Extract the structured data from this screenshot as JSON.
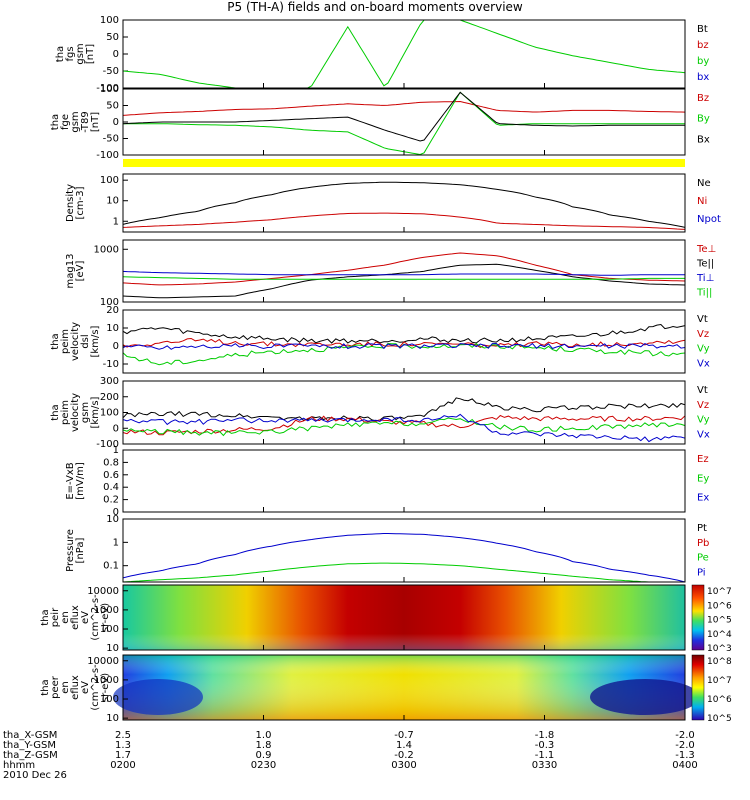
{
  "title": "P5 (TH-A) fields and on-board moments overview",
  "date_label": "2010 Dec 26",
  "colors": {
    "black": "#000000",
    "red": "#cc0000",
    "green": "#00cc00",
    "blue": "#0000cc",
    "yellow": "#ffff00"
  },
  "chart_data": [
    {
      "type": "line",
      "title": "",
      "ylabel": [
        "tha",
        "fgs",
        "gsm",
        "[nT]"
      ],
      "ylim": [
        -100,
        100
      ],
      "yticks": [
        100,
        50,
        0,
        -50,
        -100
      ],
      "series": [
        {
          "name": "Bt",
          "color": "black",
          "values": []
        },
        {
          "name": "bz",
          "color": "red",
          "values": []
        },
        {
          "name": "by",
          "color": "green",
          "values": [
            -50,
            -60,
            -85,
            -100,
            -100,
            -100,
            80,
            -100,
            100,
            100,
            60,
            20,
            -5,
            -25,
            -45,
            -55
          ]
        },
        {
          "name": "bx",
          "color": "blue",
          "values": []
        }
      ]
    },
    {
      "type": "line",
      "ylabel": [
        "tha",
        "fge",
        "gsm",
        "-T89",
        "[nT]"
      ],
      "ylim": [
        -100,
        100
      ],
      "yticks": [
        100,
        50,
        0,
        -50,
        -100
      ],
      "series": [
        {
          "name": "Bz",
          "color": "red",
          "values": [
            20,
            28,
            32,
            38,
            40,
            48,
            55,
            50,
            60,
            62,
            35,
            30,
            35,
            35,
            32,
            30
          ]
        },
        {
          "name": "By",
          "color": "green",
          "values": [
            -5,
            -5,
            -8,
            -10,
            -15,
            -25,
            -30,
            -80,
            -100,
            90,
            -10,
            -5,
            -5,
            -5,
            -5,
            -5
          ]
        },
        {
          "name": "Bx",
          "color": "black",
          "values": [
            -5,
            0,
            0,
            0,
            5,
            10,
            15,
            -25,
            -60,
            90,
            -5,
            -10,
            -12,
            -10,
            -10,
            -10
          ]
        }
      ],
      "band_below": "yellow"
    },
    {
      "type": "line",
      "log": true,
      "ylabel": [
        "Density",
        "[cm-3]"
      ],
      "ylim": [
        0.3,
        200
      ],
      "yticks": [
        100,
        10,
        1
      ],
      "series": [
        {
          "name": "Ne",
          "color": "black",
          "values": [
            0.7,
            1.5,
            3,
            8,
            20,
            45,
            70,
            80,
            75,
            60,
            35,
            15,
            5,
            2,
            1,
            0.5
          ]
        },
        {
          "name": "Ni",
          "color": "red",
          "values": [
            0.5,
            0.6,
            0.7,
            0.9,
            1.2,
            1.8,
            2.4,
            2.5,
            2.3,
            1.6,
            0.8,
            0.7,
            0.6,
            0.55,
            0.5,
            0.4
          ]
        },
        {
          "name": "Npot",
          "color": "blue",
          "values": []
        }
      ]
    },
    {
      "type": "line",
      "log": true,
      "ylabel": [
        "mag13",
        "[eV]"
      ],
      "ylim": [
        100,
        1500
      ],
      "yticks": [
        1000,
        100
      ],
      "series": [
        {
          "name": "Te⊥",
          "color": "red",
          "values": [
            230,
            210,
            220,
            240,
            280,
            330,
            400,
            500,
            700,
            850,
            750,
            500,
            330,
            280,
            260,
            250
          ]
        },
        {
          "name": "Te||",
          "color": "black",
          "values": [
            130,
            120,
            125,
            130,
            180,
            260,
            300,
            330,
            380,
            500,
            520,
            400,
            300,
            250,
            220,
            210
          ]
        },
        {
          "name": "Ti⊥",
          "color": "blue",
          "values": [
            380,
            360,
            350,
            340,
            330,
            330,
            330,
            330,
            330,
            340,
            340,
            340,
            330,
            320,
            330,
            330
          ]
        },
        {
          "name": "Ti||",
          "color": "green",
          "values": [
            300,
            290,
            280,
            270,
            270,
            270,
            270,
            270,
            270,
            270,
            270,
            270,
            270,
            270,
            280,
            280
          ]
        }
      ]
    },
    {
      "type": "line",
      "ylabel": [
        "tha",
        "peim",
        "velocity",
        "dsl",
        "[km/s]"
      ],
      "ylim": [
        -15,
        20
      ],
      "yticks": [
        20,
        10,
        0,
        -10
      ],
      "series": [
        {
          "name": "Vt",
          "color": "black",
          "values": [
            8,
            10,
            7,
            5,
            4,
            3,
            3,
            3,
            4,
            3,
            3,
            4,
            5,
            7,
            10,
            12
          ]
        },
        {
          "name": "Vz",
          "color": "red",
          "values": [
            0,
            2,
            3,
            2,
            1,
            1,
            1,
            1,
            1,
            1,
            0,
            1,
            1,
            1,
            2,
            3
          ]
        },
        {
          "name": "Vy",
          "color": "green",
          "values": [
            -5,
            -10,
            -8,
            -5,
            -3,
            -2,
            -1,
            0,
            0,
            0,
            0,
            -1,
            -2,
            -3,
            -4,
            -5
          ]
        },
        {
          "name": "Vx",
          "color": "blue",
          "values": [
            0,
            -1,
            0,
            0,
            0,
            0,
            0,
            0,
            0,
            0,
            0,
            0,
            0,
            0,
            0,
            0
          ]
        }
      ]
    },
    {
      "type": "line",
      "ylabel": [
        "tha",
        "peim",
        "velocity",
        "gsm",
        "[km/s]"
      ],
      "ylim": [
        -100,
        300
      ],
      "yticks": [
        300,
        200,
        100,
        0,
        -100
      ],
      "series": [
        {
          "name": "Vt",
          "color": "black",
          "values": [
            80,
            90,
            90,
            80,
            70,
            60,
            70,
            60,
            70,
            200,
            130,
            120,
            130,
            140,
            140,
            150
          ]
        },
        {
          "name": "Vz",
          "color": "red",
          "values": [
            -20,
            -30,
            -20,
            -10,
            0,
            60,
            60,
            40,
            30,
            10,
            70,
            60,
            60,
            60,
            60,
            70
          ]
        },
        {
          "name": "Vy",
          "color": "green",
          "values": [
            -10,
            -20,
            -30,
            -30,
            -20,
            0,
            20,
            30,
            30,
            60,
            10,
            -10,
            0,
            10,
            20,
            30
          ]
        },
        {
          "name": "Vx",
          "color": "blue",
          "values": [
            50,
            40,
            40,
            50,
            50,
            50,
            50,
            60,
            50,
            80,
            -30,
            -40,
            -50,
            -60,
            -70,
            -60
          ]
        }
      ]
    },
    {
      "type": "line",
      "ylabel": [
        "E=-VxB",
        "[mV/m]"
      ],
      "ylim": [
        0,
        1
      ],
      "yticks": [
        1.0,
        0.8,
        0.6,
        0.4,
        0.2,
        0.0
      ],
      "series": [
        {
          "name": "Ez",
          "color": "red",
          "values": []
        },
        {
          "name": "Ey",
          "color": "green",
          "values": []
        },
        {
          "name": "Ex",
          "color": "blue",
          "values": []
        }
      ]
    },
    {
      "type": "line",
      "log": true,
      "ylabel": [
        "Pressure",
        "[nPa]"
      ],
      "ylim": [
        0.02,
        10
      ],
      "yticks": [
        10.0,
        1.0,
        0.1
      ],
      "series": [
        {
          "name": "Pt",
          "color": "black",
          "values": []
        },
        {
          "name": "Pb",
          "color": "red",
          "values": []
        },
        {
          "name": "Pe",
          "color": "green",
          "values": [
            0.02,
            0.025,
            0.03,
            0.04,
            0.06,
            0.09,
            0.12,
            0.13,
            0.12,
            0.1,
            0.07,
            0.05,
            0.035,
            0.025,
            0.02,
            0.02
          ]
        },
        {
          "name": "Pi",
          "color": "blue",
          "values": [
            0.03,
            0.06,
            0.12,
            0.3,
            0.7,
            1.3,
            2.0,
            2.4,
            2.2,
            1.6,
            0.9,
            0.4,
            0.15,
            0.07,
            0.04,
            0.02
          ]
        }
      ]
    },
    {
      "type": "heatmap",
      "ylabel": [
        "tha",
        "peir",
        "en",
        "eflux",
        "eV",
        "(cm^2-s-",
        "sr-eV)"
      ],
      "yticks": [
        10000,
        1000,
        100,
        10
      ],
      "colorbar_ticks": [
        "10^7",
        "10^6",
        "10^5",
        "10^4",
        "10^3"
      ],
      "colormap": "rainbow"
    },
    {
      "type": "heatmap",
      "ylabel": [
        "tha",
        "peer",
        "en",
        "eflux",
        "eV",
        "(cm^2-s-",
        "sr-eV)"
      ],
      "yticks": [
        10000,
        1000,
        100,
        10
      ],
      "colorbar_ticks": [
        "10^8",
        "10^7",
        "10^6",
        "10^5"
      ],
      "colormap": "rainbow"
    }
  ],
  "x_axis": {
    "tick_times": [
      "0200",
      "0230",
      "0300",
      "0330",
      "0400"
    ],
    "rows": [
      {
        "label": "tha_X-GSM",
        "values": [
          "2.5",
          "1.0",
          "-0.7",
          "-1.8",
          "-2.0"
        ]
      },
      {
        "label": "tha_Y-GSM",
        "values": [
          "1.3",
          "1.8",
          "1.4",
          "-0.3",
          "-2.0"
        ]
      },
      {
        "label": "tha_Z-GSM",
        "values": [
          "1.7",
          "0.9",
          "-0.2",
          "-1.1",
          "-1.3"
        ]
      },
      {
        "label": "hhmm",
        "values": []
      }
    ]
  }
}
